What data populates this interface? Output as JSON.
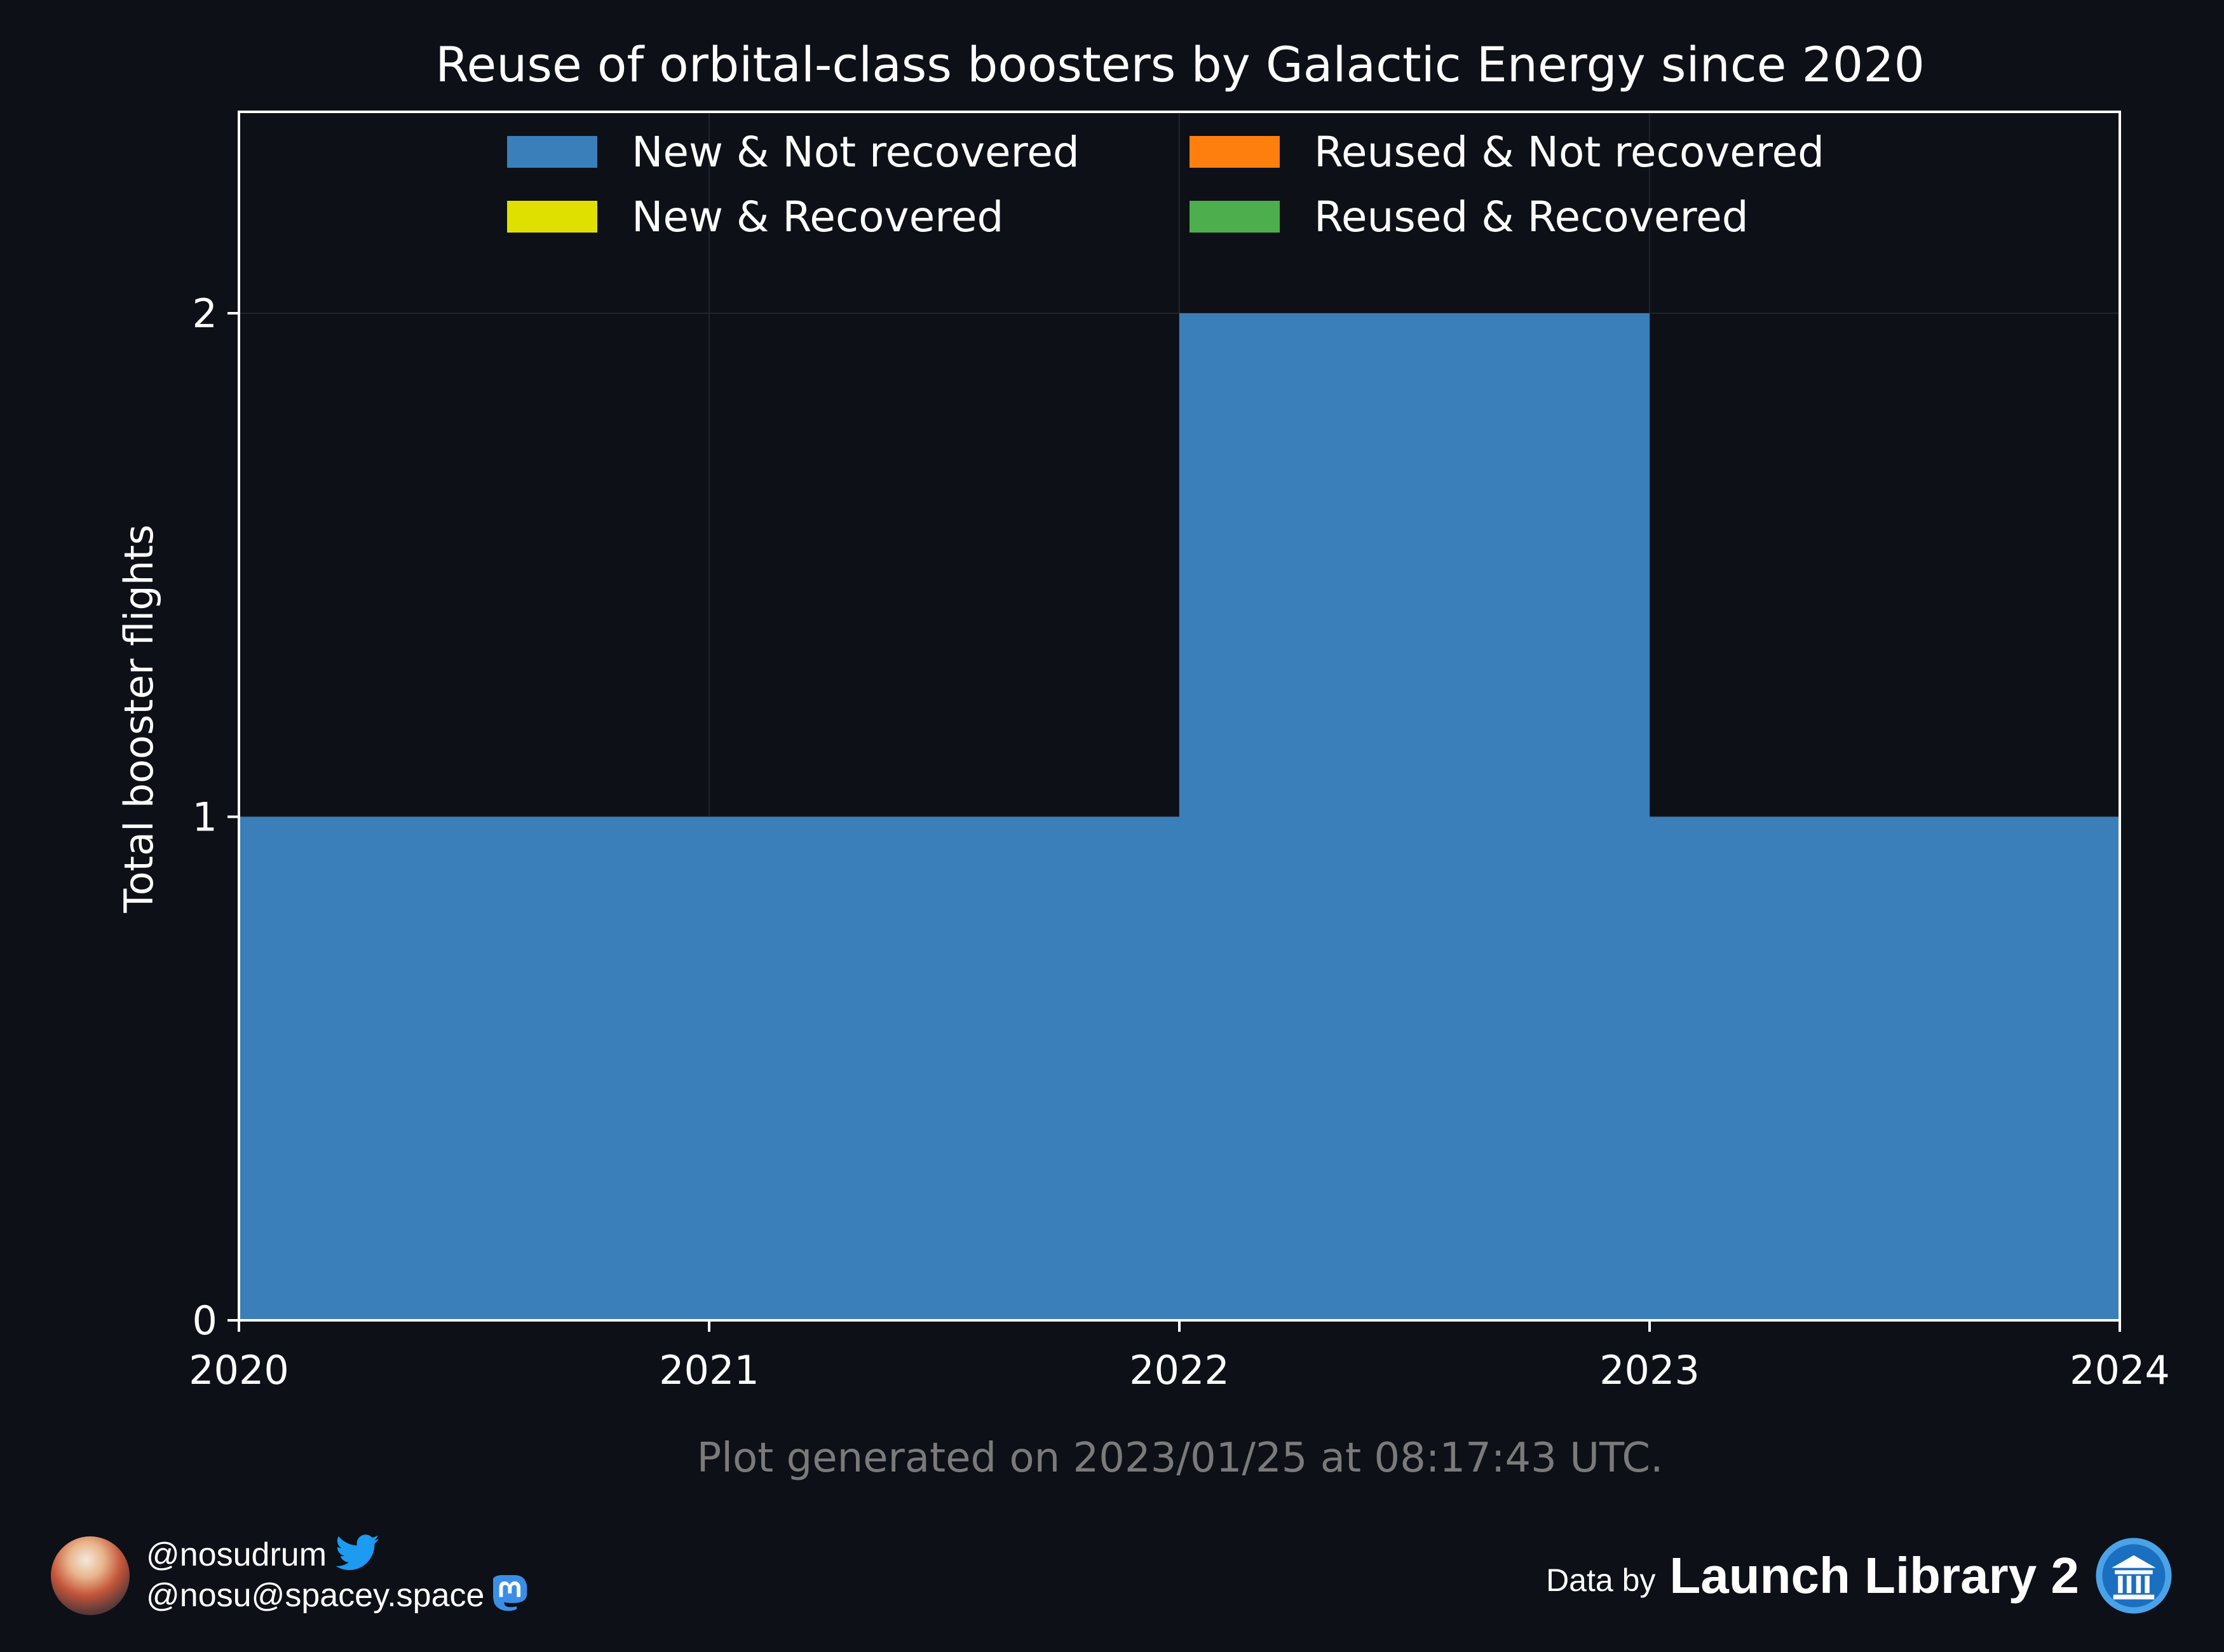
{
  "chart_data": {
    "type": "area",
    "step": true,
    "title": "Reuse of orbital-class boosters by Galactic Energy since 2020",
    "ylabel": "Total booster flights",
    "xlabel": "",
    "x_ticks": [
      "2020",
      "2021",
      "2022",
      "2023",
      "2024"
    ],
    "y_ticks": [
      "0",
      "1",
      "2"
    ],
    "xlim": [
      2020,
      2024
    ],
    "ylim": [
      0,
      2.4
    ],
    "grid": true,
    "legend_position": "top-center",
    "stacked": true,
    "x": [
      2020,
      2021,
      2022,
      2023,
      2024
    ],
    "series": [
      {
        "name": "New & Not recovered",
        "color": "#3a7fba",
        "values": [
          1,
          1,
          2,
          1,
          1
        ]
      },
      {
        "name": "New & Recovered",
        "color": "#e0e000",
        "values": [
          0,
          0,
          0,
          0,
          0
        ]
      },
      {
        "name": "Reused & Not recovered",
        "color": "#ff7f0e",
        "values": [
          0,
          0,
          0,
          0,
          0
        ]
      },
      {
        "name": "Reused & Recovered",
        "color": "#4cae4c",
        "values": [
          0,
          0,
          0,
          0,
          0
        ]
      }
    ]
  },
  "footer": {
    "generated": "Plot generated on 2023/01/25 at 08:17:43 UTC.",
    "twitter_handle": "@nosudrum",
    "mastodon_handle": "@nosu@spacey.space",
    "data_by": "Data by",
    "source": "Launch Library 2"
  },
  "colors": {
    "background": "#0d1017",
    "text": "#ffffff",
    "muted": "#7a7a7a",
    "twitter": "#1d9bf0",
    "mastodon": "#3a8ee6"
  },
  "icons": [
    "twitter-icon",
    "mastodon-icon",
    "launch-library-logo-icon"
  ]
}
